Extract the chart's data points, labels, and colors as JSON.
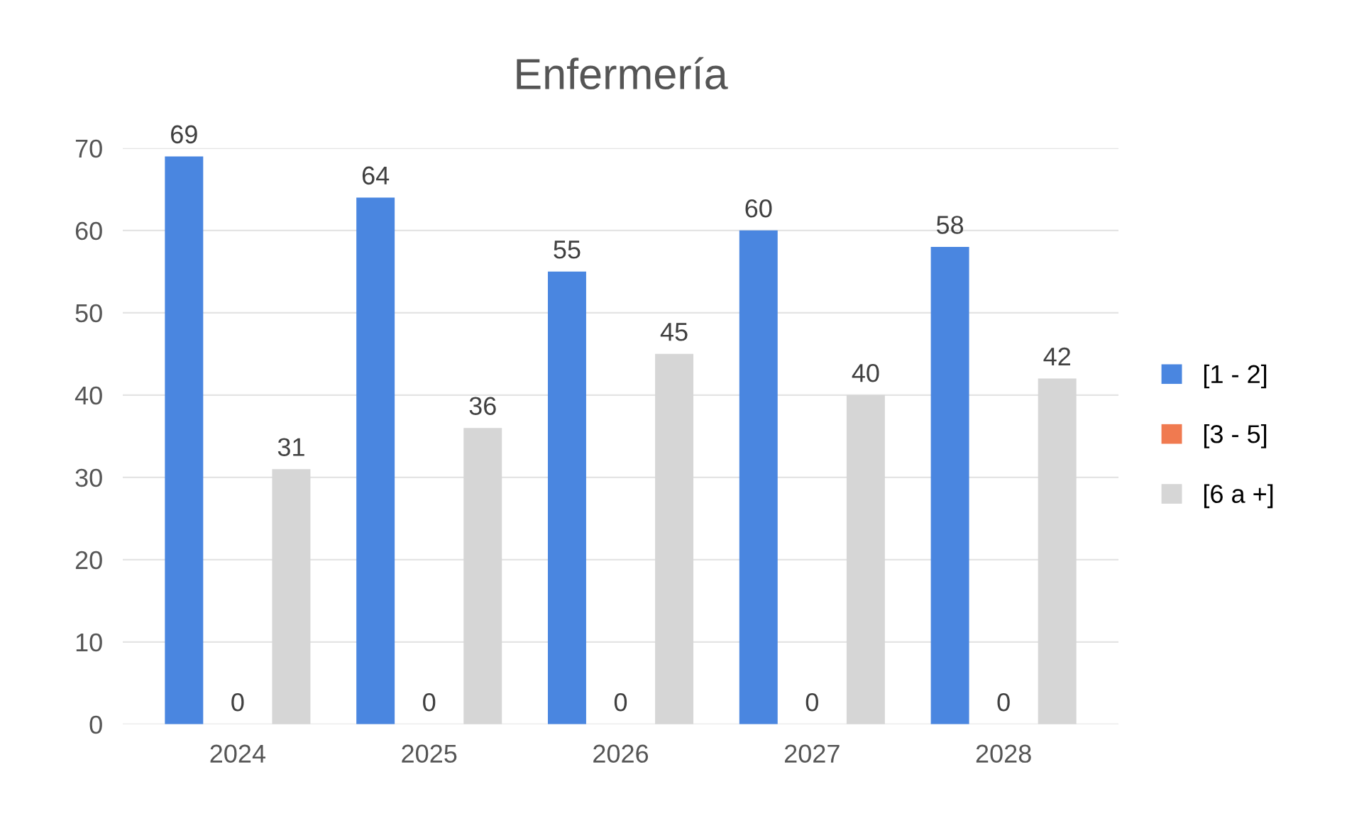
{
  "chart_data": {
    "type": "bar",
    "title": "Enfermería",
    "categories": [
      "2024",
      "2025",
      "2026",
      "2027",
      "2028"
    ],
    "series": [
      {
        "name": "[1 - 2]",
        "color": "#4a86e0",
        "values": [
          69,
          64,
          55,
          60,
          58
        ]
      },
      {
        "name": "[3 - 5]",
        "color": "#f07a50",
        "values": [
          0,
          0,
          0,
          0,
          0
        ]
      },
      {
        "name": "[6 a +]",
        "color": "#d6d6d6",
        "values": [
          31,
          36,
          45,
          40,
          42
        ]
      }
    ],
    "ylim": [
      0,
      70
    ],
    "yticks": [
      0,
      10,
      20,
      30,
      40,
      50,
      60,
      70
    ],
    "grid": "y",
    "legend": "right",
    "data_labels": true
  }
}
